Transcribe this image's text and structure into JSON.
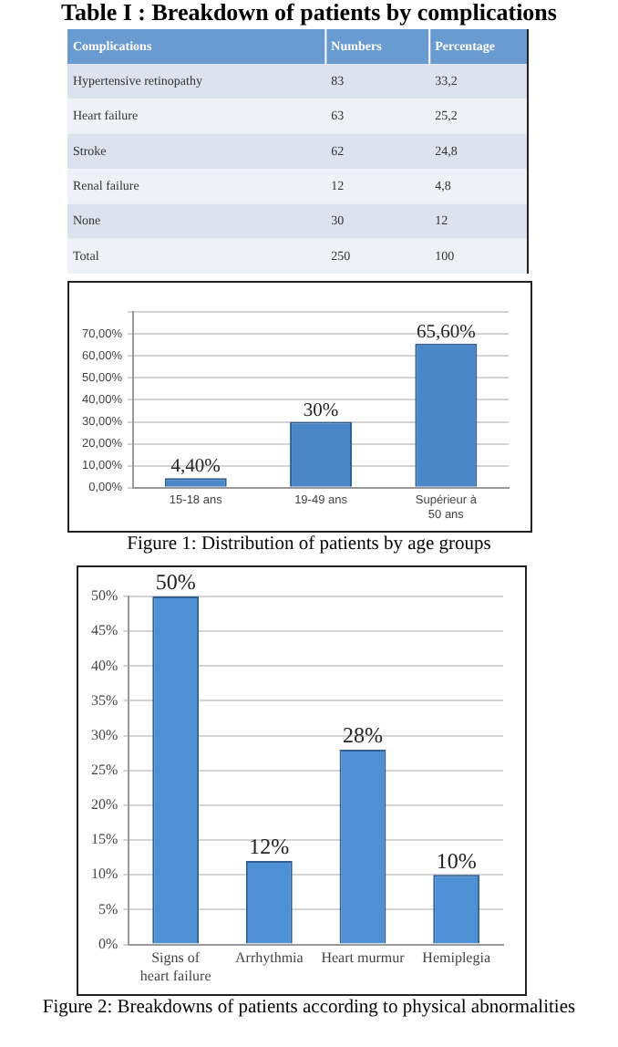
{
  "chart_data": [
    {
      "type": "heatmap",
      "title": "Table I : Breakdown of patients by complications",
      "ylabel": "Complications",
      "categories": [
        "Numbers",
        "Percentage"
      ],
      "y_categories": [
        "Hypertensive retinopathy",
        "Heart failure",
        "Stroke",
        "Renal failure",
        "None",
        "Total"
      ],
      "cells": [
        [
          83,
          33.2
        ],
        [
          63,
          25.2
        ],
        [
          62,
          24.8
        ],
        [
          12,
          4.8
        ],
        [
          30,
          12
        ],
        [
          250,
          100
        ]
      ],
      "cell_labels": [
        [
          "83",
          "33,2"
        ],
        [
          "63",
          "25,2"
        ],
        [
          "62",
          "24,8"
        ],
        [
          "12",
          "4,8"
        ],
        [
          "30",
          "12"
        ],
        [
          "250",
          "100"
        ]
      ]
    },
    {
      "type": "bar",
      "title": "Figure 1: Distribution of patients by age groups",
      "categories": [
        "15-18 ans",
        "19-49 ans",
        "Supérieur à 50 ans"
      ],
      "values": [
        4.4,
        30,
        65.6
      ],
      "value_labels": [
        "4,40%",
        "30%",
        "65,60%"
      ],
      "color": "#4a86c8",
      "ylim": [
        0,
        80
      ],
      "yticks": [
        {
          "value": 0,
          "label": "0,00%"
        },
        {
          "value": 10,
          "label": "10,00%"
        },
        {
          "value": 20,
          "label": "20,00%"
        },
        {
          "value": 30,
          "label": "30,00%"
        },
        {
          "value": 40,
          "label": "40,00%"
        },
        {
          "value": 50,
          "label": "50,00%"
        },
        {
          "value": 60,
          "label": "60,00%"
        },
        {
          "value": 70,
          "label": "70,00%"
        },
        {
          "value": 80,
          "label": null
        }
      ],
      "grid": "y"
    },
    {
      "type": "bar",
      "title": "Figure 2: Breakdowns of patients according to physical abnormalities",
      "categories": [
        "Signs of heart failure",
        "Arrhythmia",
        "Heart murmur",
        "Hemiplegia"
      ],
      "values": [
        50,
        12,
        28,
        10
      ],
      "value_labels": [
        "50%",
        "12%",
        "28%",
        "10%"
      ],
      "color": "#4f8fd4",
      "ylim": [
        0,
        50
      ],
      "yticks": [
        {
          "value": 0,
          "label": "0%"
        },
        {
          "value": 5,
          "label": "5%"
        },
        {
          "value": 10,
          "label": "10%"
        },
        {
          "value": 15,
          "label": "15%"
        },
        {
          "value": 20,
          "label": "20%"
        },
        {
          "value": 25,
          "label": "25%"
        },
        {
          "value": 30,
          "label": "30%"
        },
        {
          "value": 35,
          "label": "35%"
        },
        {
          "value": 40,
          "label": "40%"
        },
        {
          "value": 45,
          "label": "45%"
        },
        {
          "value": 50,
          "label": "50%"
        }
      ],
      "grid": "y"
    }
  ]
}
